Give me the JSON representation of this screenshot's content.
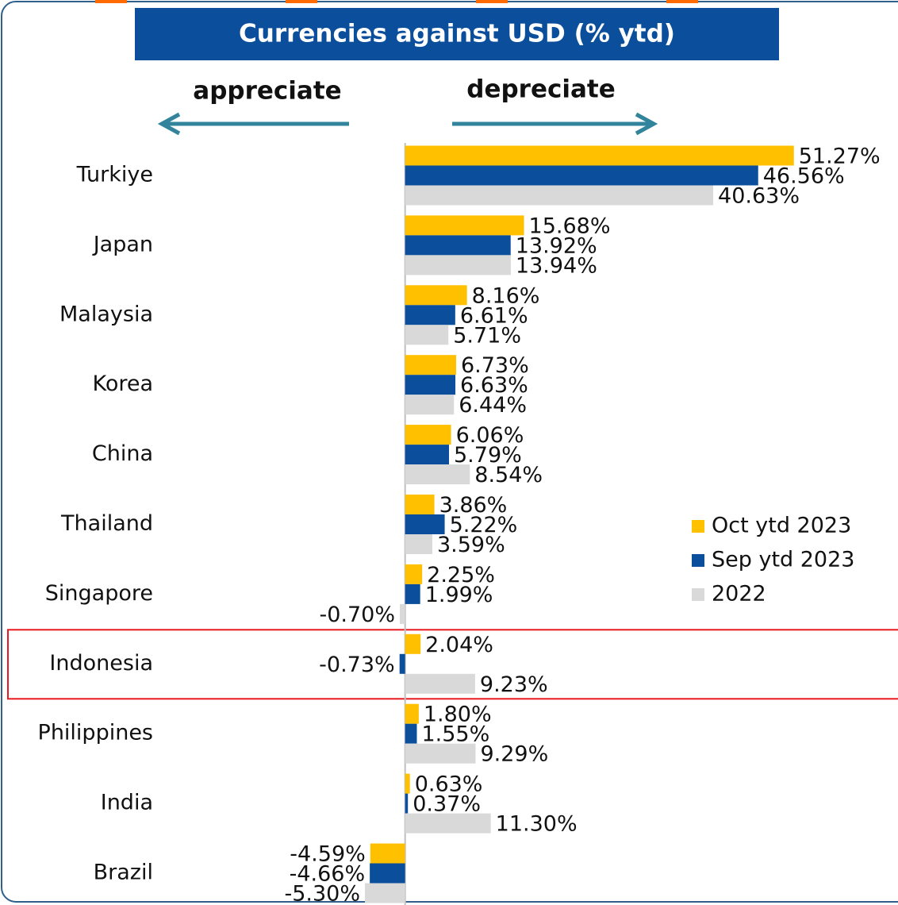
{
  "chart_data": {
    "type": "bar",
    "orientation": "horizontal",
    "title": "Currencies against USD (% ytd)",
    "annotations": [
      "appreciate",
      "depreciate"
    ],
    "categories": [
      "Turkiye",
      "Japan",
      "Malaysia",
      "Korea",
      "China",
      "Thailand",
      "Singapore",
      "Indonesia",
      "Philippines",
      "India",
      "Brazil"
    ],
    "xlim": [
      -32.5,
      65
    ],
    "highlight": "Indonesia",
    "series": [
      {
        "name": "Oct ytd 2023",
        "color": "#ffc000",
        "values": [
          51.27,
          15.68,
          8.16,
          6.73,
          6.06,
          3.86,
          2.25,
          2.04,
          1.8,
          0.63,
          -4.59
        ],
        "value_labels": [
          "51.27%",
          "15.68%",
          "8.16%",
          "6.73%",
          "6.06%",
          "3.86%",
          "2.25%",
          "2.04%",
          "1.80%",
          "0.63%",
          "-4.59%"
        ]
      },
      {
        "name": "Sep ytd 2023",
        "color": "#0b4f9c",
        "values": [
          46.56,
          13.92,
          6.61,
          6.63,
          5.79,
          5.22,
          1.99,
          -0.73,
          1.55,
          0.37,
          -4.66
        ],
        "value_labels": [
          "46.56%",
          "13.92%",
          "6.61%",
          "6.63%",
          "5.79%",
          "5.22%",
          "1.99%",
          "-0.73%",
          "1.55%",
          "0.37%",
          "-4.66%"
        ]
      },
      {
        "name": "2022",
        "color": "#d9d9d9",
        "values": [
          40.63,
          13.94,
          5.71,
          6.44,
          8.54,
          3.59,
          -0.7,
          9.23,
          9.29,
          11.3,
          -5.3
        ],
        "value_labels": [
          "40.63%",
          "13.94%",
          "5.71%",
          "6.44%",
          "8.54%",
          "3.59%",
          "-0.70%",
          "9.23%",
          "9.29%",
          "11.30%",
          "-5.30%"
        ]
      }
    ]
  }
}
